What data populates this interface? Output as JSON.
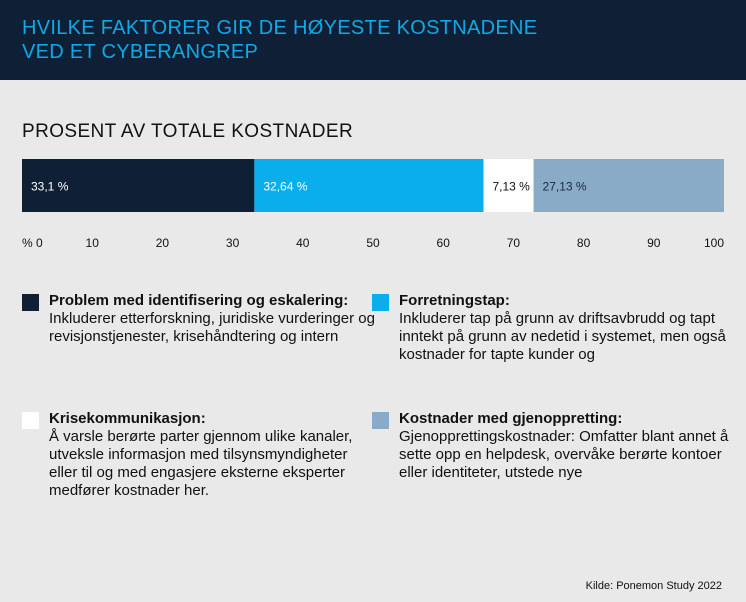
{
  "header": {
    "title": "HVILKE FAKTORER GIR DE HØYESTE KOSTNADENE VED ET CYBERANGREP"
  },
  "subtitle": "PROSENT AV TOTALE KOSTNADER",
  "chart_data": {
    "type": "bar",
    "orientation": "horizontal-stacked",
    "title": "PROSENT AV TOTALE KOSTNADER",
    "series": [
      {
        "name": "Problem med identifisering og eskalering",
        "value": 33.1,
        "label": "33,1 %",
        "color": "#0f1f36",
        "label_color": "#ffffff"
      },
      {
        "name": "Forretningstap",
        "value": 32.64,
        "label": "32,64 %",
        "color": "#0aaeec",
        "label_color": "#ffffff"
      },
      {
        "name": "Krisekommunikasjon",
        "value": 7.13,
        "label": "7,13 %",
        "color": "#ffffff",
        "label_color": "#111111"
      },
      {
        "name": "Kostnader med gjenoppretting",
        "value": 27.13,
        "label": "27,13 %",
        "color": "#8aabc8",
        "label_color": "#1a2a40"
      }
    ],
    "xlim": [
      0,
      100
    ],
    "ticks": [
      "% 0",
      "10",
      "20",
      "30",
      "40",
      "50",
      "60",
      "70",
      "80",
      "90",
      "100"
    ],
    "tick_values": [
      0,
      10,
      20,
      30,
      40,
      50,
      60,
      70,
      80,
      90,
      100
    ]
  },
  "legend": [
    {
      "title": "Problem med identifisering og eskalering:",
      "desc": "Inkluderer etterforskning, juridiske vurderinger og revisjonstjenester, krisehåndtering og intern",
      "color": "#0f1f36"
    },
    {
      "title": "Forretningstap:",
      "desc": "Inkluderer tap på grunn av driftsavbrudd og tapt inntekt på grunn av nedetid i systemet, men også kostnader for tapte kunder og",
      "color": "#0aaeec"
    },
    {
      "title": "Krisekommunikasjon:",
      "desc": "Å varsle berørte parter gjennom ulike kanaler, utveksle informasjon med tilsynsmyndigheter eller til og med engasjere eksterne eksperter medfører kostnader her.",
      "color": "#ffffff"
    },
    {
      "title": "Kostnader med gjenoppretting:",
      "desc": "Gjenopprettingskostnader: Omfatter blant annet å sette opp en helpdesk, overvåke berørte kontoer eller identiteter, utstede nye",
      "color": "#8aabc8"
    }
  ],
  "source": "Kilde: Ponemon Study 2022"
}
